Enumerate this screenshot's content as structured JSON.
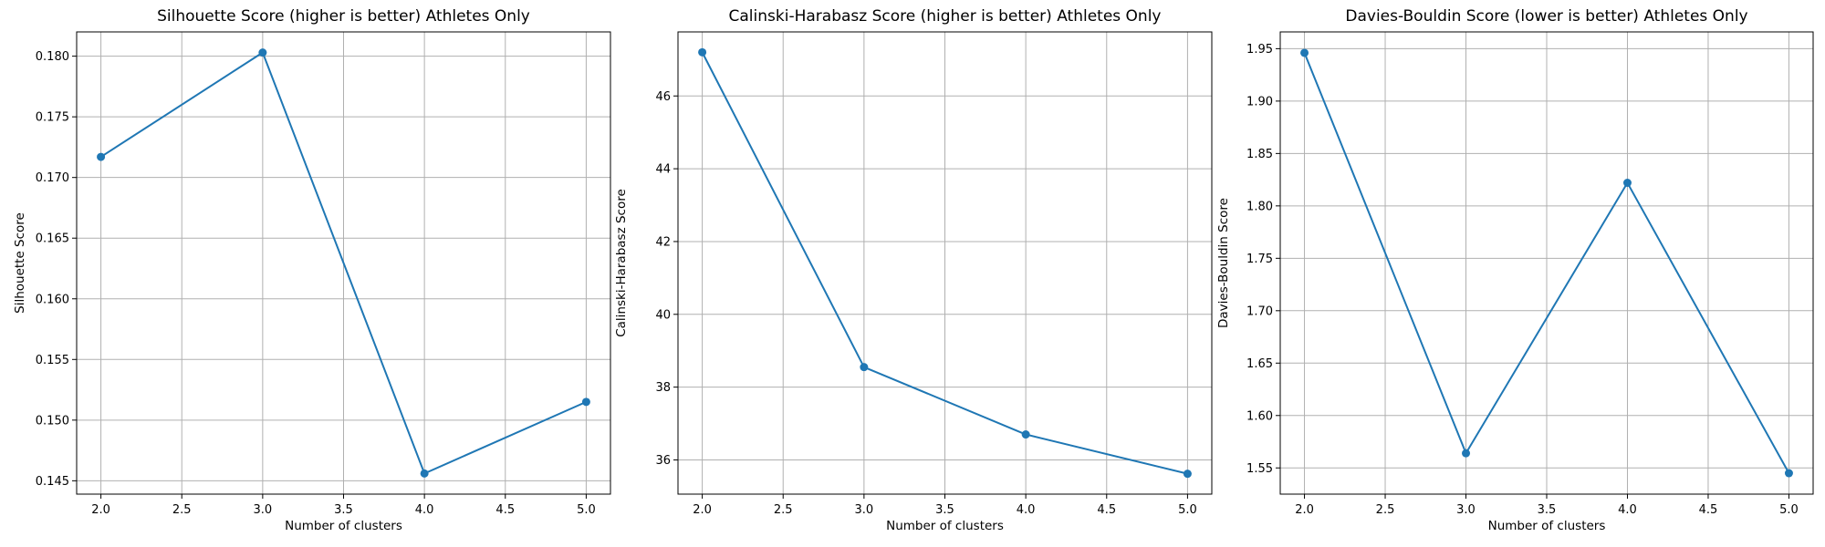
{
  "chart_data": [
    {
      "type": "line",
      "title": "Silhouette Score (higher is better) Athletes Only",
      "xlabel": "Number of clusters",
      "ylabel": "Silhouette Score",
      "x": [
        2.0,
        3.0,
        4.0,
        5.0
      ],
      "series": [
        {
          "values": [
            0.1717,
            0.1803,
            0.1456,
            0.1515
          ]
        }
      ],
      "xlim": [
        1.85,
        5.15
      ],
      "ylim": [
        0.1439,
        0.182
      ],
      "xticks": [
        2.0,
        2.5,
        3.0,
        3.5,
        4.0,
        4.5,
        5.0
      ],
      "xtick_labels": [
        "2.0",
        "2.5",
        "3.0",
        "3.5",
        "4.0",
        "4.5",
        "5.0"
      ],
      "yticks": [
        0.145,
        0.15,
        0.155,
        0.16,
        0.165,
        0.17,
        0.175,
        0.18
      ],
      "ytick_labels": [
        "0.145",
        "0.150",
        "0.155",
        "0.160",
        "0.165",
        "0.170",
        "0.175",
        "0.180"
      ],
      "grid": true,
      "marker": "circle"
    },
    {
      "type": "line",
      "title": "Calinski-Harabasz Score (higher is better) Athletes Only",
      "xlabel": "Number of clusters",
      "ylabel": "Calinski-Harabasz Score",
      "x": [
        2.0,
        3.0,
        4.0,
        5.0
      ],
      "series": [
        {
          "values": [
            47.2,
            38.55,
            36.7,
            35.62
          ]
        }
      ],
      "xlim": [
        1.85,
        5.15
      ],
      "ylim": [
        35.06,
        47.76
      ],
      "xticks": [
        2.0,
        2.5,
        3.0,
        3.5,
        4.0,
        4.5,
        5.0
      ],
      "xtick_labels": [
        "2.0",
        "2.5",
        "3.0",
        "3.5",
        "4.0",
        "4.5",
        "5.0"
      ],
      "yticks": [
        36,
        38,
        40,
        42,
        44,
        46
      ],
      "ytick_labels": [
        "36",
        "38",
        "40",
        "42",
        "44",
        "46"
      ],
      "grid": true,
      "marker": "circle"
    },
    {
      "type": "line",
      "title": "Davies-Bouldin Score (lower is better) Athletes Only",
      "xlabel": "Number of clusters",
      "ylabel": "Davies-Bouldin Score",
      "x": [
        2.0,
        3.0,
        4.0,
        5.0
      ],
      "series": [
        {
          "values": [
            1.946,
            1.564,
            1.822,
            1.545
          ]
        }
      ],
      "xlim": [
        1.85,
        5.15
      ],
      "ylim": [
        1.525,
        1.966
      ],
      "xticks": [
        2.0,
        2.5,
        3.0,
        3.5,
        4.0,
        4.5,
        5.0
      ],
      "xtick_labels": [
        "2.0",
        "2.5",
        "3.0",
        "3.5",
        "4.0",
        "4.5",
        "5.0"
      ],
      "yticks": [
        1.55,
        1.6,
        1.65,
        1.7,
        1.75,
        1.8,
        1.85,
        1.9,
        1.95
      ],
      "ytick_labels": [
        "1.55",
        "1.60",
        "1.65",
        "1.70",
        "1.75",
        "1.80",
        "1.85",
        "1.90",
        "1.95"
      ],
      "grid": true,
      "marker": "circle"
    }
  ],
  "colors": {
    "line": "#1f77b4",
    "grid": "#b0b0b0",
    "axes": "#000000"
  }
}
